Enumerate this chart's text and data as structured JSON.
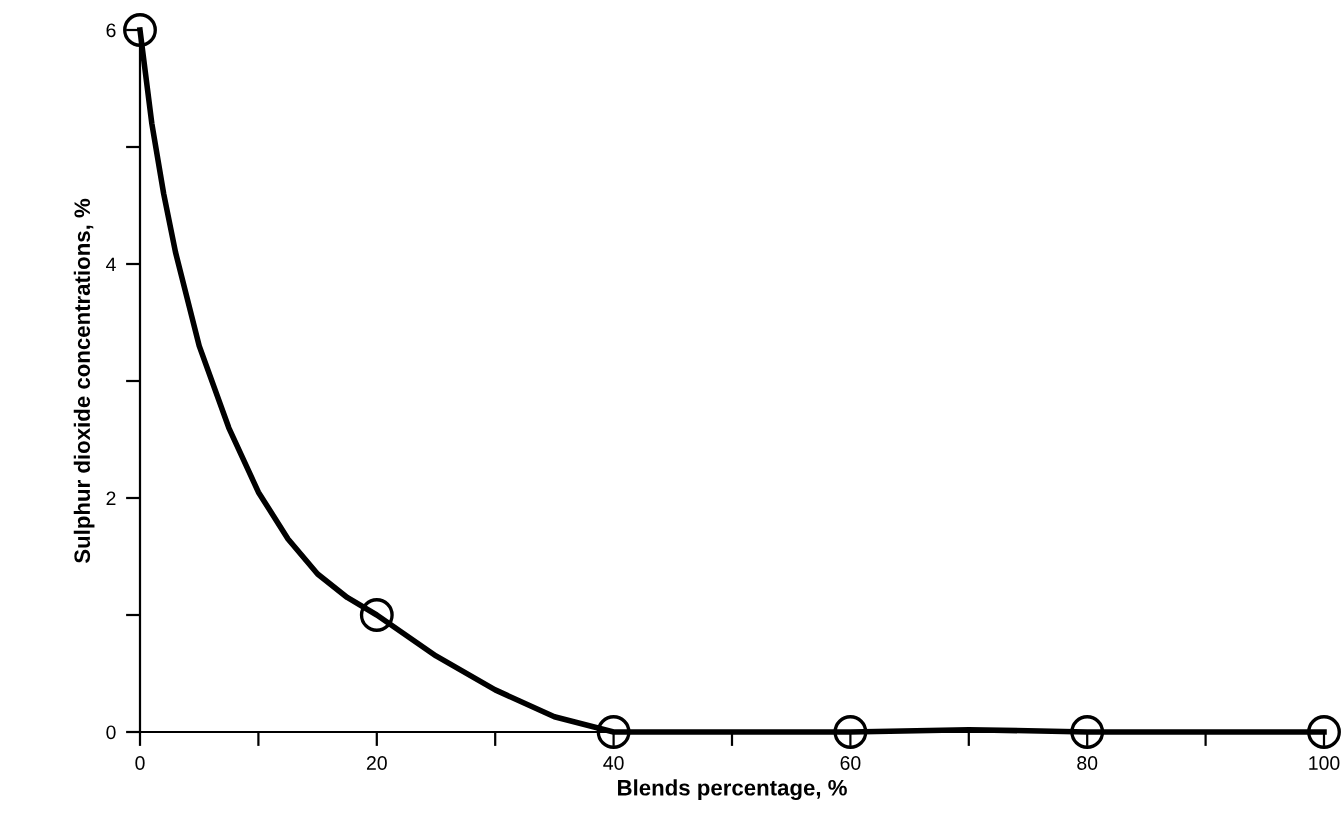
{
  "chart_data": {
    "type": "line",
    "xlabel": "Blends percentage, %",
    "ylabel": "Sulphur dioxide concentrations, %",
    "series": [
      {
        "color": "#000000",
        "marker": "none",
        "x": [
          0,
          1,
          2,
          3,
          5,
          7.5,
          10,
          12.5,
          15,
          17.5,
          20,
          25,
          30,
          35,
          40,
          45,
          50,
          55,
          60,
          70,
          80,
          90,
          100
        ],
        "values": [
          6,
          5.2,
          4.6,
          4.1,
          3.3,
          2.6,
          2.05,
          1.65,
          1.35,
          1.15,
          1,
          0.65,
          0.36,
          0.13,
          0,
          0,
          0,
          0,
          0,
          0.02,
          0,
          0,
          0
        ]
      },
      {
        "type": "scatter",
        "color": "#000000",
        "marker": "circle",
        "x": [
          0,
          20,
          40,
          60,
          80,
          100
        ],
        "values": [
          6,
          1,
          0,
          0,
          0,
          0
        ]
      }
    ],
    "xlim": [
      0,
      100
    ],
    "ylim": [
      0,
      6
    ],
    "xticks": [
      0,
      {
        "value": 10,
        "label": null
      },
      20,
      {
        "value": 30,
        "label": null
      },
      40,
      {
        "value": 50,
        "label": null
      },
      60,
      {
        "value": 70,
        "label": null
      },
      80,
      {
        "value": 90,
        "label": null
      },
      100
    ],
    "yticks": [
      0,
      {
        "value": 1,
        "label": null
      },
      2,
      {
        "value": 3,
        "label": null
      },
      4,
      {
        "value": 5,
        "label": null
      },
      6
    ],
    "line_style": "solid",
    "grid": false,
    "legend": false
  }
}
